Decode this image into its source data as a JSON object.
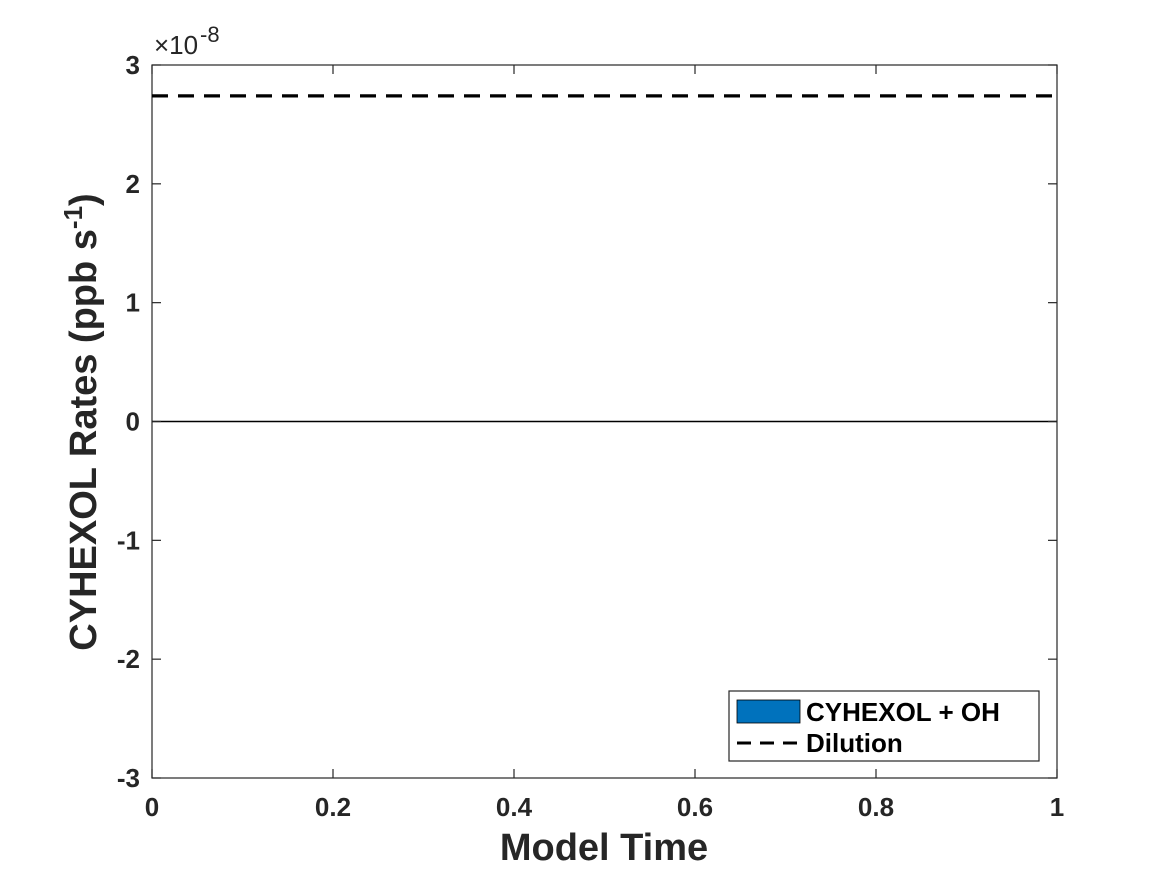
{
  "chart_data": {
    "type": "line",
    "title": "",
    "xlabel": "Model Time",
    "ylabel": "CYHEXOL Rates (ppb s",
    "ylabel_sup": "-1",
    "ylabel_tail": ")",
    "xlim": [
      0,
      1
    ],
    "ylim": [
      -3e-08,
      3e-08
    ],
    "x_ticks": [
      0,
      0.2,
      0.4,
      0.6,
      0.8,
      1
    ],
    "x_tick_labels": [
      "0",
      "0.2",
      "0.4",
      "0.6",
      "0.8",
      "1"
    ],
    "y_ticks": [
      -3,
      -2,
      -1,
      0,
      1,
      2,
      3
    ],
    "y_tick_labels": [
      "-3",
      "-2",
      "-1",
      "0",
      "1",
      "2",
      "3"
    ],
    "y_exponent_base": "×10",
    "y_exponent_power": "-8",
    "grid": false,
    "legend_position": "bottom-right",
    "series": [
      {
        "name": "CYHEXOL + OH",
        "style": "area",
        "color": "#0072BD",
        "x": [
          0,
          1
        ],
        "y": [
          0,
          0
        ]
      },
      {
        "name": "Dilution",
        "style": "dashed",
        "color": "#000000",
        "x": [
          0,
          1
        ],
        "y": [
          2.74e-08,
          2.74e-08
        ]
      }
    ],
    "zero_line": true
  }
}
